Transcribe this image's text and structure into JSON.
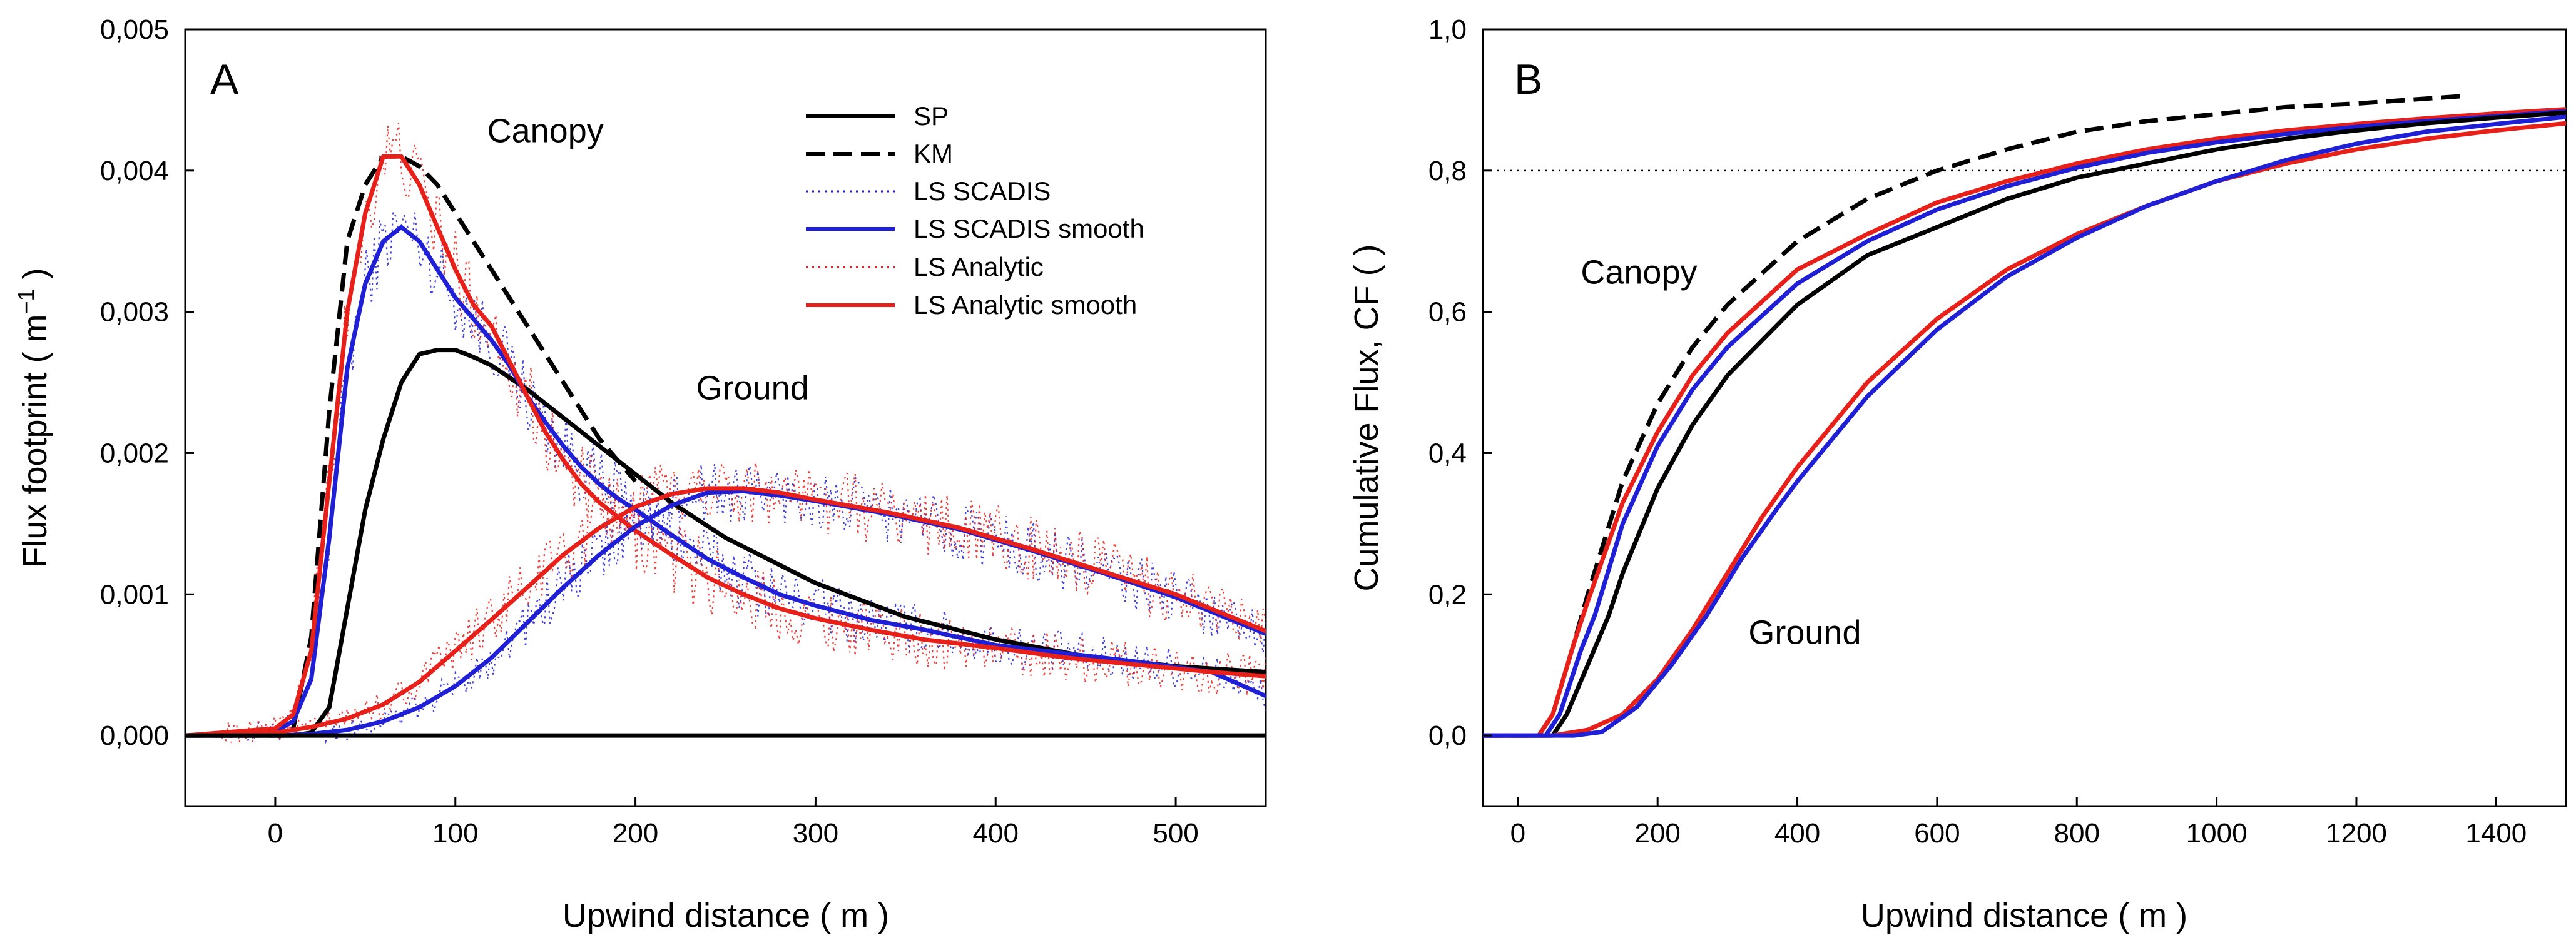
{
  "chart_data": [
    {
      "type": "line",
      "panel_label": "A",
      "xlabel": "Upwind distance ( m )",
      "ylabel_prefix": "Flux footprint ( m",
      "ylabel_sup": "−1",
      "ylabel_suffix": " )",
      "xlim": [
        -50,
        550
      ],
      "ylim": [
        -0.0005,
        0.005
      ],
      "xticks": [
        0,
        100,
        200,
        300,
        400,
        500
      ],
      "xtick_labels": [
        "0",
        "100",
        "200",
        "300",
        "400",
        "500"
      ],
      "yticks": [
        0,
        0.001,
        0.002,
        0.003,
        0.004,
        0.005
      ],
      "ytick_labels": [
        "0,000",
        "0,001",
        "0,002",
        "0,003",
        "0,004",
        "0,005"
      ],
      "grid": false,
      "legend_position": "top-right",
      "legend": [
        {
          "label": "SP",
          "color": "#000000",
          "style": "solid"
        },
        {
          "label": "KM",
          "color": "#000000",
          "style": "dashed"
        },
        {
          "label": "LS SCADIS",
          "color": "#1f1fd6",
          "style": "dotted"
        },
        {
          "label": "LS SCADIS smooth",
          "color": "#1f1fd6",
          "style": "solid"
        },
        {
          "label": "LS Analytic",
          "color": "#e8201a",
          "style": "dotted"
        },
        {
          "label": "LS Analytic smooth",
          "color": "#e8201a",
          "style": "solid"
        }
      ],
      "annotations": [
        {
          "text": "Canopy",
          "x": 150,
          "y": 0.0042
        },
        {
          "text": "Ground",
          "x": 265,
          "y": 0.00238
        }
      ],
      "series": [
        {
          "name": "SP (canopy)",
          "color": "#000000",
          "style": "solid",
          "x": [
            -50,
            10,
            20,
            30,
            40,
            50,
            60,
            70,
            80,
            90,
            100,
            110,
            120,
            140,
            160,
            180,
            200,
            220,
            250,
            300,
            350,
            400,
            450,
            500,
            550
          ],
          "y": [
            0,
            0,
            2e-05,
            0.0002,
            0.0009,
            0.0016,
            0.0021,
            0.0025,
            0.0027,
            0.00273,
            0.00273,
            0.00268,
            0.00262,
            0.00245,
            0.00225,
            0.00205,
            0.00185,
            0.00165,
            0.0014,
            0.00108,
            0.00084,
            0.00068,
            0.00056,
            0.00049,
            0.00045
          ]
        },
        {
          "name": "KM (canopy)",
          "color": "#000000",
          "style": "dashed",
          "x": [
            -50,
            5,
            10,
            20,
            30,
            40,
            50,
            60,
            70,
            80,
            90,
            100,
            120,
            140,
            160,
            180,
            200
          ],
          "y": [
            0,
            0,
            5e-05,
            0.0007,
            0.0023,
            0.0035,
            0.0039,
            0.0041,
            0.0041,
            0.00403,
            0.0039,
            0.0037,
            0.0033,
            0.0029,
            0.0025,
            0.0021,
            0.0018
          ]
        },
        {
          "name": "LS SCADIS smooth (canopy)",
          "color": "#1f1fd6",
          "style": "solid",
          "x": [
            -50,
            0,
            10,
            20,
            30,
            40,
            50,
            60,
            70,
            80,
            90,
            100,
            110,
            120,
            130,
            140,
            150,
            160,
            170,
            180,
            190,
            200,
            220,
            240,
            260,
            280,
            300,
            330,
            360,
            400,
            440,
            480,
            520,
            550
          ],
          "y": [
            0,
            3e-05,
            0.0001,
            0.0004,
            0.0014,
            0.0026,
            0.0032,
            0.0035,
            0.0036,
            0.0035,
            0.0033,
            0.0031,
            0.00295,
            0.0028,
            0.00262,
            0.0024,
            0.00222,
            0.00205,
            0.0019,
            0.00178,
            0.00168,
            0.0016,
            0.00142,
            0.00125,
            0.00112,
            0.001,
            0.00092,
            0.00082,
            0.00075,
            0.00064,
            0.00058,
            0.00052,
            0.00045,
            0.00028
          ]
        },
        {
          "name": "LS Analytic smooth (canopy)",
          "color": "#e8201a",
          "style": "solid",
          "x": [
            -50,
            0,
            10,
            20,
            30,
            40,
            50,
            60,
            70,
            80,
            90,
            100,
            110,
            120,
            130,
            140,
            150,
            160,
            170,
            180,
            190,
            200,
            220,
            240,
            260,
            280,
            300,
            330,
            360,
            400,
            440,
            480,
            520,
            550
          ],
          "y": [
            0,
            5e-05,
            0.00015,
            0.0006,
            0.0018,
            0.003,
            0.0037,
            0.0041,
            0.0041,
            0.0039,
            0.0036,
            0.0033,
            0.00305,
            0.0029,
            0.00265,
            0.0024,
            0.00215,
            0.00195,
            0.00178,
            0.00165,
            0.00155,
            0.00145,
            0.00128,
            0.00112,
            0.001,
            0.0009,
            0.00083,
            0.00075,
            0.00068,
            0.00062,
            0.00055,
            0.0005,
            0.00045,
            0.00042
          ]
        },
        {
          "name": "LS SCADIS smooth (ground)",
          "color": "#1f1fd6",
          "style": "solid",
          "x": [
            -50,
            0,
            20,
            40,
            60,
            80,
            100,
            120,
            140,
            160,
            180,
            200,
            220,
            240,
            260,
            280,
            300,
            340,
            380,
            420,
            460,
            500,
            550
          ],
          "y": [
            0,
            0,
            1e-05,
            4e-05,
            0.0001,
            0.0002,
            0.00035,
            0.00055,
            0.0008,
            0.00105,
            0.00128,
            0.00148,
            0.00163,
            0.00172,
            0.00173,
            0.0017,
            0.00166,
            0.00157,
            0.00146,
            0.00131,
            0.00115,
            0.00098,
            0.00072
          ]
        },
        {
          "name": "LS Analytic smooth (ground)",
          "color": "#e8201a",
          "style": "solid",
          "x": [
            -50,
            0,
            20,
            40,
            60,
            80,
            100,
            120,
            140,
            160,
            180,
            200,
            220,
            240,
            260,
            280,
            300,
            340,
            380,
            420,
            460,
            500,
            550
          ],
          "y": [
            0,
            2e-05,
            6e-05,
            0.00012,
            0.00022,
            0.00038,
            0.0006,
            0.00082,
            0.00105,
            0.00128,
            0.00147,
            0.00162,
            0.00171,
            0.00175,
            0.00175,
            0.00172,
            0.00167,
            0.00158,
            0.00147,
            0.00132,
            0.00116,
            0.001,
            0.00074
          ]
        },
        {
          "name": "SP (ground)",
          "color": "#000000",
          "style": "solid",
          "x": [
            -50,
            0,
            100,
            200,
            300,
            400,
            500,
            550
          ],
          "y": [
            0,
            0,
            0,
            0,
            0,
            0,
            0,
            0
          ]
        }
      ],
      "noise_series": [
        {
          "name": "LS SCADIS (canopy)",
          "color": "#1f1fd6",
          "follows": "LS SCADIS smooth (canopy)",
          "amplitude": 0.00025
        },
        {
          "name": "LS Analytic (canopy)",
          "color": "#e8201a",
          "follows": "LS Analytic smooth (canopy)",
          "amplitude": 0.00028
        },
        {
          "name": "LS SCADIS (ground)",
          "color": "#1f1fd6",
          "follows": "LS SCADIS smooth (ground)",
          "amplitude": 0.00022
        },
        {
          "name": "LS Analytic (ground)",
          "color": "#e8201a",
          "follows": "LS Analytic smooth (ground)",
          "amplitude": 0.00024
        }
      ]
    },
    {
      "type": "line",
      "panel_label": "B",
      "xlabel": "Upwind distance ( m )",
      "ylabel": "Cumulative Flux, CF (   )",
      "xlim": [
        -50,
        1500
      ],
      "ylim": [
        -0.1,
        1.0
      ],
      "xticks": [
        0,
        200,
        400,
        600,
        800,
        1000,
        1200,
        1400
      ],
      "xtick_labels": [
        "0",
        "200",
        "400",
        "600",
        "800",
        "1000",
        "1200",
        "1400"
      ],
      "yticks": [
        0,
        0.2,
        0.4,
        0.6,
        0.8,
        1.0
      ],
      "ytick_labels": [
        "0,0",
        "0,2",
        "0,4",
        "0,6",
        "0,8",
        "1,0"
      ],
      "grid": false,
      "reference_line": {
        "y": 0.8,
        "style": "dotted",
        "color": "#000000"
      },
      "annotations": [
        {
          "text": "Canopy",
          "x": 90,
          "y": 0.64
        },
        {
          "text": "Ground",
          "x": 330,
          "y": 0.13
        }
      ],
      "series": [
        {
          "name": "KM (canopy)",
          "color": "#000000",
          "style": "dashed",
          "x": [
            -50,
            30,
            50,
            80,
            100,
            150,
            200,
            250,
            300,
            400,
            500,
            600,
            700,
            800,
            900,
            1000,
            1100,
            1200,
            1300,
            1360
          ],
          "y": [
            0,
            0,
            0.03,
            0.13,
            0.2,
            0.36,
            0.47,
            0.55,
            0.61,
            0.7,
            0.76,
            0.8,
            0.83,
            0.855,
            0.87,
            0.88,
            0.89,
            0.895,
            0.902,
            0.906
          ]
        },
        {
          "name": "LS Analytic (canopy)",
          "color": "#e8201a",
          "style": "solid",
          "x": [
            -50,
            30,
            50,
            80,
            100,
            150,
            200,
            250,
            300,
            400,
            500,
            600,
            700,
            800,
            900,
            1000,
            1100,
            1200,
            1300,
            1400,
            1500
          ],
          "y": [
            0,
            0,
            0.03,
            0.13,
            0.19,
            0.33,
            0.43,
            0.51,
            0.57,
            0.66,
            0.71,
            0.755,
            0.785,
            0.81,
            0.83,
            0.845,
            0.857,
            0.866,
            0.874,
            0.881,
            0.887
          ]
        },
        {
          "name": "LS SCADIS (canopy)",
          "color": "#1f1fd6",
          "style": "solid",
          "x": [
            -50,
            40,
            60,
            90,
            110,
            150,
            200,
            250,
            300,
            400,
            500,
            600,
            700,
            800,
            900,
            1000,
            1100,
            1200,
            1300,
            1400,
            1500
          ],
          "y": [
            0,
            0,
            0.03,
            0.12,
            0.17,
            0.3,
            0.41,
            0.49,
            0.55,
            0.64,
            0.7,
            0.745,
            0.778,
            0.804,
            0.825,
            0.84,
            0.852,
            0.862,
            0.87,
            0.877,
            0.884
          ]
        },
        {
          "name": "SP (canopy)",
          "color": "#000000",
          "style": "solid",
          "x": [
            -50,
            50,
            70,
            100,
            130,
            150,
            200,
            250,
            300,
            400,
            500,
            600,
            700,
            800,
            900,
            1000,
            1100,
            1200,
            1300,
            1400,
            1500
          ],
          "y": [
            0,
            0,
            0.03,
            0.1,
            0.17,
            0.23,
            0.35,
            0.44,
            0.51,
            0.61,
            0.68,
            0.72,
            0.76,
            0.79,
            0.81,
            0.83,
            0.845,
            0.857,
            0.867,
            0.875,
            0.882
          ]
        },
        {
          "name": "LS Analytic (ground)",
          "color": "#e8201a",
          "style": "solid",
          "x": [
            -50,
            50,
            100,
            150,
            200,
            250,
            300,
            350,
            400,
            500,
            600,
            700,
            800,
            900,
            1000,
            1100,
            1200,
            1300,
            1400,
            1500
          ],
          "y": [
            0,
            0,
            0.008,
            0.03,
            0.08,
            0.15,
            0.23,
            0.31,
            0.38,
            0.5,
            0.59,
            0.66,
            0.71,
            0.75,
            0.785,
            0.81,
            0.83,
            0.845,
            0.857,
            0.867
          ]
        },
        {
          "name": "LS SCADIS (ground)",
          "color": "#1f1fd6",
          "style": "solid",
          "x": [
            -50,
            80,
            120,
            170,
            220,
            270,
            320,
            370,
            400,
            500,
            600,
            700,
            800,
            900,
            1000,
            1100,
            1200,
            1300,
            1400,
            1500
          ],
          "y": [
            0,
            0,
            0.005,
            0.04,
            0.1,
            0.17,
            0.25,
            0.32,
            0.36,
            0.48,
            0.575,
            0.65,
            0.705,
            0.75,
            0.785,
            0.815,
            0.838,
            0.855,
            0.866,
            0.876
          ]
        }
      ]
    }
  ]
}
